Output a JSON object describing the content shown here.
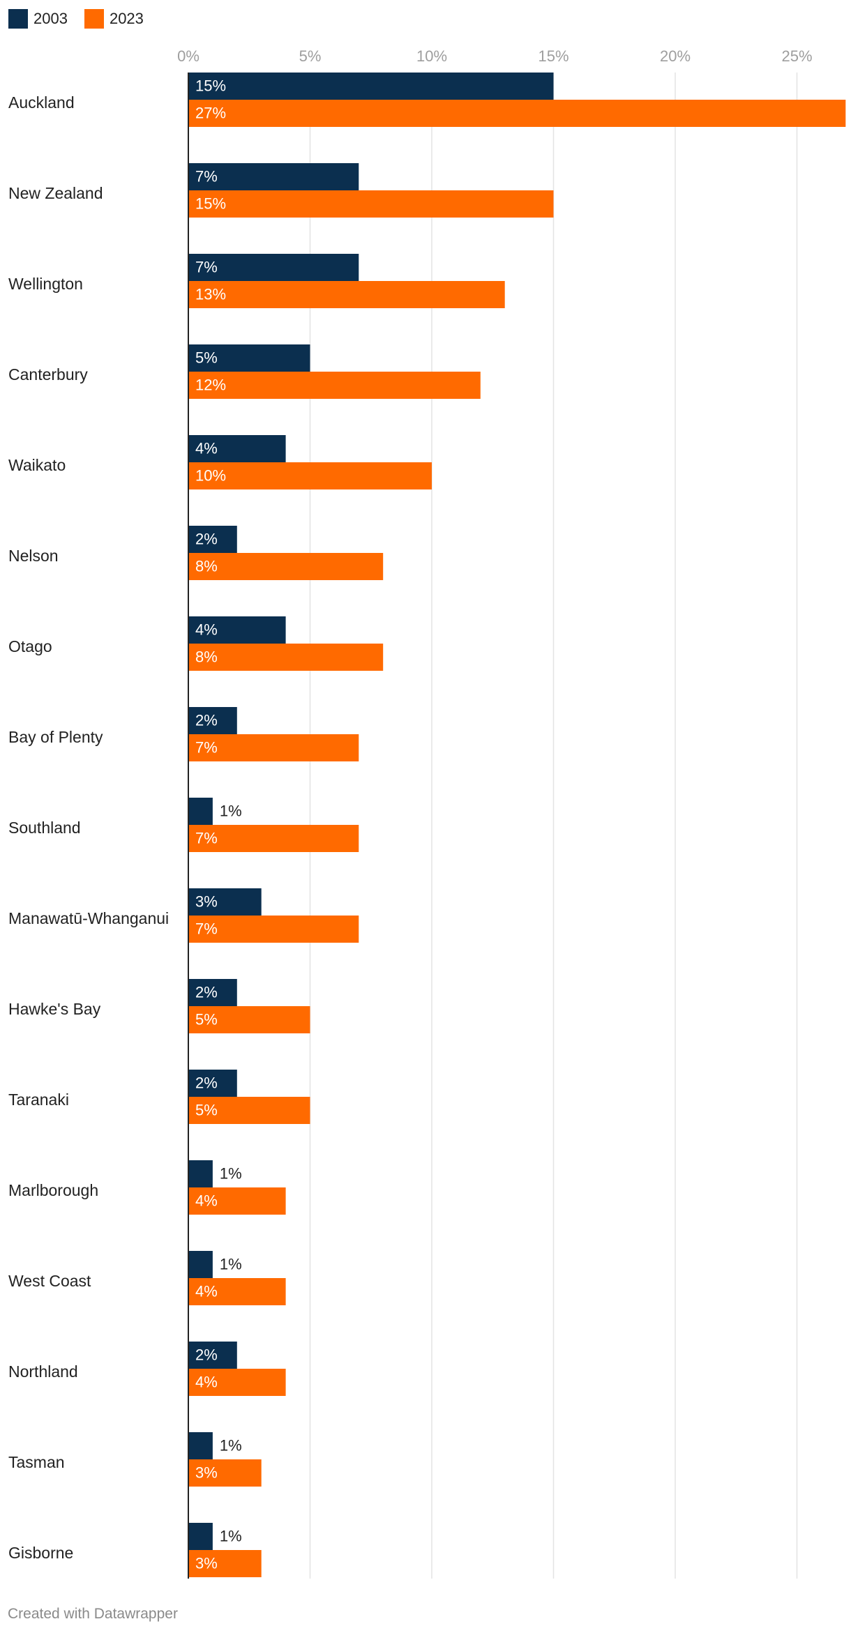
{
  "colors": {
    "s2003": "#0b2f4f",
    "s2023": "#ff6a00",
    "grid": "#e3e3e3",
    "axis": "#222222",
    "tick": "#9e9e9e"
  },
  "legend": [
    {
      "label": "2003",
      "color": "#0b2f4f"
    },
    {
      "label": "2023",
      "color": "#ff6a00"
    }
  ],
  "footer": "Created with Datawrapper",
  "chart_data": {
    "type": "bar",
    "orientation": "horizontal",
    "x_ticks": [
      0,
      5,
      10,
      15,
      20,
      25
    ],
    "x_tick_labels": [
      "0%",
      "5%",
      "10%",
      "15%",
      "20%",
      "25%"
    ],
    "xlim": [
      0,
      27
    ],
    "grid": true,
    "legend_position": "top-left",
    "categories": [
      "Auckland",
      "New Zealand",
      "Wellington",
      "Canterbury",
      "Waikato",
      "Nelson",
      "Otago",
      "Bay of Plenty",
      "Southland",
      "Manawatū-Whanganui",
      "Hawke's Bay",
      "Taranaki",
      "Marlborough",
      "West Coast",
      "Northland",
      "Tasman",
      "Gisborne"
    ],
    "series": [
      {
        "name": "2003",
        "values": [
          15,
          7,
          7,
          5,
          4,
          2,
          4,
          2,
          1,
          3,
          2,
          2,
          1,
          1,
          2,
          1,
          1
        ],
        "labels": [
          "15%",
          "7%",
          "7%",
          "5%",
          "4%",
          "2%",
          "4%",
          "2%",
          "1%",
          "3%",
          "2%",
          "2%",
          "1%",
          "1%",
          "2%",
          "1%",
          "1%"
        ]
      },
      {
        "name": "2023",
        "values": [
          27,
          15,
          13,
          12,
          10,
          8,
          8,
          7,
          7,
          7,
          5,
          5,
          4,
          4,
          4,
          3,
          3
        ],
        "labels": [
          "27%",
          "15%",
          "13%",
          "12%",
          "10%",
          "8%",
          "8%",
          "7%",
          "7%",
          "7%",
          "5%",
          "5%",
          "4%",
          "4%",
          "4%",
          "3%",
          "3%"
        ]
      }
    ]
  }
}
